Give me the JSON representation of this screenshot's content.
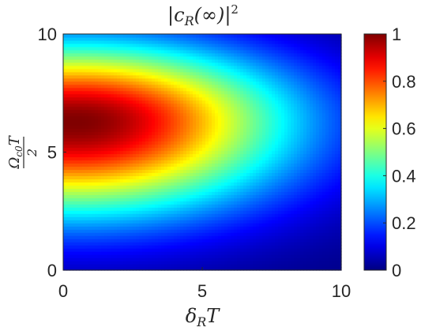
{
  "chart_data": {
    "type": "heatmap",
    "title": "|c_R(∞)|²",
    "title_parts": {
      "open": "|c",
      "sub": "R",
      "mid": "(∞)|",
      "sup": "2"
    },
    "xlabel": "δ_R T",
    "xlabel_parts": {
      "main": "δ",
      "sub": "R",
      "tail": "T"
    },
    "ylabel": "Ω_c0 T / 2",
    "ylabel_parts": {
      "num_main": "Ω",
      "num_sub": "c0",
      "num_tail": "T",
      "den": "2"
    },
    "xlim": [
      0,
      10
    ],
    "ylim": [
      0,
      10
    ],
    "x_ticks": [
      0,
      5,
      10
    ],
    "y_ticks": [
      0,
      5,
      10
    ],
    "x_tick_labels": [
      "0",
      "5",
      "10"
    ],
    "y_tick_labels": [
      "0",
      "5",
      "10"
    ],
    "colorbar": {
      "colormap": "jet",
      "range": [
        0,
        1
      ],
      "ticks": [
        0,
        0.2,
        0.4,
        0.6,
        0.8,
        1
      ],
      "tick_labels": [
        "0",
        "0.2",
        "0.4",
        "0.6",
        "0.8",
        "1"
      ]
    },
    "grid": false,
    "description_of_peak": {
      "x": 0.5,
      "y": 6.3,
      "value": 1.0
    }
  }
}
